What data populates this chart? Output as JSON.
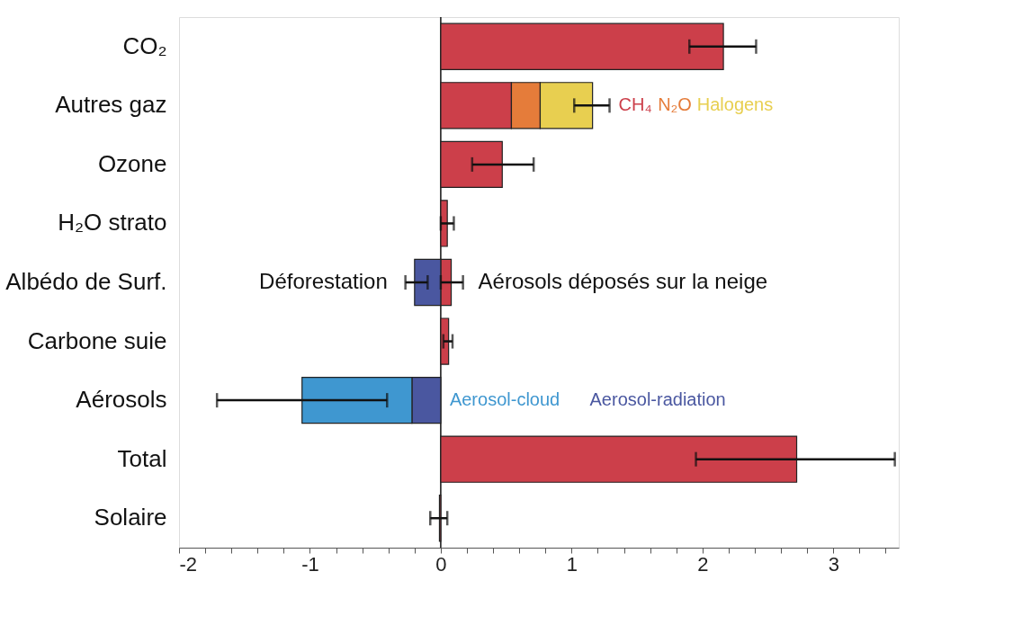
{
  "chart_data": {
    "type": "bar",
    "orientation": "horizontal",
    "stacked": true,
    "categories": [
      "CO₂",
      "Autres gaz",
      "Ozone",
      "H₂O strato",
      "Albédo de Surf.",
      "Carbone suie",
      "Aérosols",
      "Total",
      "Solaire"
    ],
    "series": [
      {
        "color": "#cc3f4a",
        "values": [
          2.16,
          null,
          0.47,
          0.05,
          null,
          0.06,
          null,
          2.72,
          -0.01
        ],
        "errors": [
          [
            1.9,
            2.41
          ],
          null,
          [
            0.24,
            0.71
          ],
          [
            0.0,
            0.1
          ],
          null,
          [
            0.02,
            0.09
          ],
          null,
          [
            1.95,
            3.47
          ],
          [
            -0.08,
            0.05
          ]
        ]
      },
      {
        "name": "CH₄",
        "color": "#cc3f4a",
        "values": [
          null,
          0.54,
          null,
          null,
          null,
          null,
          null,
          null,
          null
        ]
      },
      {
        "name": "N₂O",
        "color": "#e57c3a",
        "values": [
          null,
          0.22,
          null,
          null,
          null,
          null,
          null,
          null,
          null
        ]
      },
      {
        "name": "Halogens",
        "color": "#e8cf50",
        "values": [
          null,
          0.4,
          null,
          null,
          null,
          null,
          null,
          null,
          null
        ],
        "errors": [
          null,
          [
            1.02,
            1.29
          ],
          null,
          null,
          null,
          null,
          null,
          null,
          null
        ]
      },
      {
        "color": "#cc3f4a",
        "values": [
          null,
          null,
          null,
          null,
          0.08,
          null,
          null,
          null,
          null
        ],
        "errors": [
          null,
          null,
          null,
          null,
          [
            0.0,
            0.17
          ],
          null,
          null,
          null,
          null
        ]
      },
      {
        "color": "#4a57a0",
        "values": [
          null,
          null,
          null,
          null,
          -0.2,
          null,
          null,
          null,
          null
        ],
        "errors": [
          null,
          null,
          null,
          null,
          [
            -0.27,
            -0.1
          ],
          null,
          null,
          null,
          null
        ]
      },
      {
        "name": "Aerosol-radiation",
        "color": "#4a57a0",
        "values": [
          null,
          null,
          null,
          null,
          null,
          null,
          -0.22,
          null,
          null
        ]
      },
      {
        "name": "Aerosol-cloud",
        "color": "#3f97d0",
        "values": [
          null,
          null,
          null,
          null,
          null,
          null,
          -0.84,
          null,
          null
        ],
        "errors": [
          null,
          null,
          null,
          null,
          null,
          null,
          [
            -1.71,
            -0.41
          ],
          null,
          null
        ]
      }
    ],
    "annotations": [
      {
        "text": "Déforestation",
        "x": -0.2,
        "y": "Albédo de Surf."
      },
      {
        "text": "Aérosols déposés sur la neige",
        "x": 0.08,
        "y": "Albédo de Surf."
      }
    ],
    "ref_lines": [
      {
        "axis": "x",
        "value": 0
      }
    ],
    "xlim": [
      -2,
      3.5
    ],
    "xticks": [
      -2,
      {
        "value": -1.8,
        "label": null
      },
      {
        "value": -1.6,
        "label": null
      },
      {
        "value": -1.4,
        "label": null
      },
      {
        "value": -1.2,
        "label": null
      },
      -1,
      {
        "value": -0.8,
        "label": null
      },
      {
        "value": -0.6,
        "label": null
      },
      {
        "value": -0.4,
        "label": null
      },
      {
        "value": -0.2,
        "label": null
      },
      0,
      {
        "value": 0.2,
        "label": null
      },
      {
        "value": 0.4,
        "label": null
      },
      {
        "value": 0.6,
        "label": null
      },
      {
        "value": 0.8,
        "label": null
      },
      1,
      {
        "value": 1.2,
        "label": null
      },
      {
        "value": 1.4,
        "label": null
      },
      {
        "value": 1.6,
        "label": null
      },
      {
        "value": 1.8,
        "label": null
      },
      2,
      {
        "value": 2.2,
        "label": null
      },
      {
        "value": 2.4,
        "label": null
      },
      {
        "value": 2.6,
        "label": null
      },
      {
        "value": 2.8,
        "label": null
      },
      3,
      {
        "value": 3.2,
        "label": null
      },
      {
        "value": 3.4,
        "label": null
      }
    ],
    "grid": false,
    "legend": false
  }
}
